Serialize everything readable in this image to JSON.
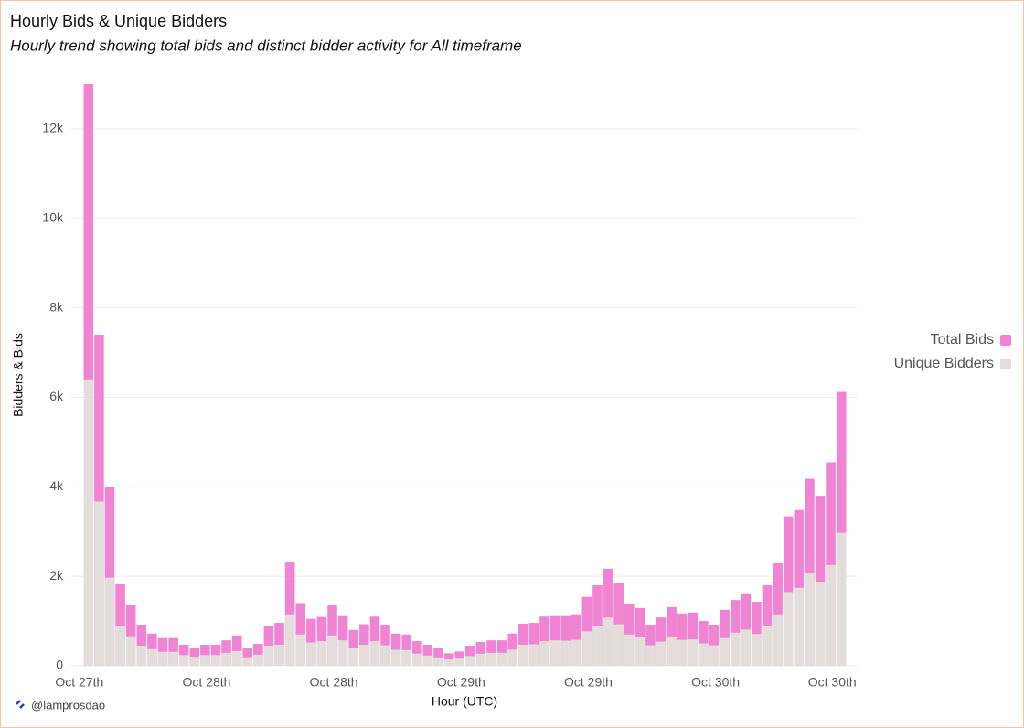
{
  "chart_data": {
    "type": "bar",
    "title": "Hourly Bids & Unique Bidders",
    "subtitle": "Hourly trend showing total bids and distinct bidder activity for All timeframe",
    "y_label": "Bidders & Bids",
    "x_label": "Hour (UTC)",
    "footer": "@lamprosdao",
    "categories": [
      "Oct 27th",
      null,
      null,
      null,
      null,
      null,
      null,
      null,
      null,
      null,
      null,
      null,
      "Oct 28th",
      null,
      null,
      null,
      null,
      null,
      null,
      null,
      null,
      null,
      null,
      null,
      "Oct 28th",
      null,
      null,
      null,
      null,
      null,
      null,
      null,
      null,
      null,
      null,
      null,
      "Oct 29th",
      null,
      null,
      null,
      null,
      null,
      null,
      null,
      null,
      null,
      null,
      null,
      "Oct 29th",
      null,
      null,
      null,
      null,
      null,
      null,
      null,
      null,
      null,
      null,
      null,
      "Oct 30th",
      null,
      null,
      null,
      null,
      null,
      null,
      null,
      null,
      null,
      null,
      "Oct 30th"
    ],
    "series": [
      {
        "name": "Total Bids",
        "color": "#f084d2",
        "values": [
          13000,
          7400,
          4000,
          1820,
          1350,
          920,
          720,
          620,
          620,
          470,
          390,
          470,
          470,
          570,
          680,
          390,
          490,
          900,
          960,
          2310,
          1400,
          1050,
          1090,
          1370,
          1130,
          800,
          930,
          1100,
          920,
          720,
          700,
          550,
          470,
          390,
          280,
          320,
          450,
          530,
          570,
          570,
          720,
          940,
          960,
          1100,
          1130,
          1130,
          1150,
          1540,
          1800,
          2170,
          1860,
          1390,
          1290,
          920,
          1080,
          1310,
          1170,
          1190,
          1000,
          920,
          1250,
          1470,
          1620,
          1430,
          1800,
          2290,
          3340,
          3480,
          4180,
          3800,
          4550,
          6120
        ]
      },
      {
        "name": "Unique Bidders",
        "color": "#e3dddc",
        "values": [
          6400,
          3670,
          1970,
          880,
          660,
          450,
          370,
          310,
          310,
          240,
          200,
          240,
          240,
          290,
          330,
          190,
          250,
          450,
          470,
          1150,
          700,
          520,
          550,
          680,
          570,
          400,
          470,
          550,
          460,
          360,
          350,
          270,
          230,
          190,
          140,
          160,
          220,
          270,
          290,
          290,
          360,
          470,
          480,
          550,
          570,
          560,
          580,
          770,
          900,
          1080,
          930,
          700,
          640,
          460,
          540,
          650,
          580,
          590,
          500,
          460,
          620,
          740,
          810,
          710,
          900,
          1150,
          1650,
          1740,
          2070,
          1880,
          2250,
          2970
        ]
      }
    ],
    "ylim": [
      0,
      13000
    ],
    "yticks": [
      0,
      {
        "value": 2000,
        "label": "2k"
      },
      {
        "value": 4000,
        "label": "4k"
      },
      {
        "value": 6000,
        "label": "6k"
      },
      {
        "value": 8000,
        "label": "8k"
      },
      {
        "value": 10000,
        "label": "10k"
      },
      {
        "value": 12000,
        "label": "12k"
      }
    ],
    "grid": true,
    "legend": "right"
  }
}
